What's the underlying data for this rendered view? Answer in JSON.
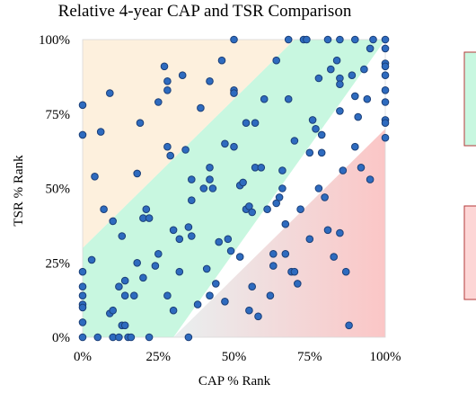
{
  "chart_data": {
    "type": "scatter",
    "title": "Relative 4-year CAP and TSR Comparison",
    "xlabel": "CAP % Rank",
    "ylabel": "TSR % Rank",
    "xlim": [
      0,
      100
    ],
    "ylim": [
      0,
      100
    ],
    "x_ticks": [
      "0%",
      "25%",
      "50%",
      "75%",
      "100%"
    ],
    "y_ticks": [
      "0%",
      "25%",
      "50%",
      "75%",
      "100%"
    ],
    "x_tick_values": [
      0,
      25,
      50,
      75,
      100
    ],
    "y_tick_values": [
      0,
      25,
      50,
      75,
      100
    ],
    "grid": false,
    "legend_placement": "right (partially cropped)",
    "regions": [
      {
        "label": "",
        "description": "upper-left band (TSR much higher than CAP)",
        "color": "#fdf0dd"
      },
      {
        "label": "",
        "description": "diagonal band",
        "color": "#c8f7e0"
      },
      {
        "label": "",
        "description": "lower-right band (TSR much lower than CAP)",
        "color": "#f7c9c9"
      }
    ],
    "series": [
      {
        "marker_color": "#2e6bbf",
        "marker_edge": "#1b3f78",
        "points": [
          [
            0,
            78
          ],
          [
            0,
            68
          ],
          [
            0,
            22
          ],
          [
            0,
            17
          ],
          [
            0,
            14
          ],
          [
            0,
            11
          ],
          [
            0,
            10
          ],
          [
            0,
            5
          ],
          [
            0,
            0
          ],
          [
            3,
            26
          ],
          [
            4,
            54
          ],
          [
            5,
            0
          ],
          [
            6,
            69
          ],
          [
            7,
            43
          ],
          [
            9,
            82
          ],
          [
            9,
            8
          ],
          [
            10,
            9
          ],
          [
            10,
            39
          ],
          [
            10,
            0
          ],
          [
            12,
            0
          ],
          [
            12,
            17
          ],
          [
            13,
            34
          ],
          [
            13,
            4
          ],
          [
            14,
            14
          ],
          [
            14,
            4
          ],
          [
            14,
            19
          ],
          [
            15,
            0
          ],
          [
            16,
            0
          ],
          [
            17,
            14
          ],
          [
            18,
            55
          ],
          [
            18,
            25
          ],
          [
            19,
            72
          ],
          [
            20,
            40
          ],
          [
            20,
            20
          ],
          [
            21,
            43
          ],
          [
            22,
            40
          ],
          [
            22,
            0
          ],
          [
            24,
            24
          ],
          [
            25,
            79
          ],
          [
            25,
            28
          ],
          [
            27,
            91
          ],
          [
            28,
            83
          ],
          [
            28,
            86
          ],
          [
            28,
            64
          ],
          [
            28,
            14
          ],
          [
            29,
            61
          ],
          [
            30,
            36
          ],
          [
            30,
            9
          ],
          [
            32,
            33
          ],
          [
            32,
            22
          ],
          [
            33,
            88
          ],
          [
            34,
            63
          ],
          [
            35,
            37
          ],
          [
            35,
            0
          ],
          [
            36,
            34
          ],
          [
            36,
            46
          ],
          [
            36,
            53
          ],
          [
            38,
            11
          ],
          [
            39,
            77
          ],
          [
            40,
            50
          ],
          [
            41,
            23
          ],
          [
            42,
            14
          ],
          [
            42,
            86
          ],
          [
            42,
            57
          ],
          [
            42,
            53
          ],
          [
            43,
            50
          ],
          [
            44,
            18
          ],
          [
            45,
            32
          ],
          [
            46,
            93
          ],
          [
            47,
            65
          ],
          [
            47,
            12
          ],
          [
            48,
            33
          ],
          [
            49,
            29
          ],
          [
            50,
            64
          ],
          [
            50,
            83
          ],
          [
            50,
            82
          ],
          [
            50,
            100
          ],
          [
            52,
            27
          ],
          [
            52,
            51
          ],
          [
            53,
            52
          ],
          [
            54,
            72
          ],
          [
            54,
            43
          ],
          [
            55,
            44
          ],
          [
            55,
            9
          ],
          [
            56,
            17
          ],
          [
            56,
            42
          ],
          [
            57,
            72
          ],
          [
            57,
            57
          ],
          [
            58,
            7
          ],
          [
            59,
            57
          ],
          [
            60,
            80
          ],
          [
            61,
            43
          ],
          [
            62,
            14
          ],
          [
            63,
            28
          ],
          [
            63,
            24
          ],
          [
            64,
            93
          ],
          [
            64,
            45
          ],
          [
            65,
            47
          ],
          [
            66,
            50
          ],
          [
            66,
            56
          ],
          [
            67,
            38
          ],
          [
            67,
            28
          ],
          [
            68,
            80
          ],
          [
            68,
            100
          ],
          [
            69,
            22
          ],
          [
            70,
            22
          ],
          [
            70,
            66
          ],
          [
            71,
            18
          ],
          [
            72,
            43
          ],
          [
            73,
            100
          ],
          [
            74,
            100
          ],
          [
            75,
            33
          ],
          [
            75,
            62
          ],
          [
            76,
            73
          ],
          [
            77,
            70
          ],
          [
            78,
            87
          ],
          [
            78,
            50
          ],
          [
            79,
            62
          ],
          [
            79,
            68
          ],
          [
            80,
            47
          ],
          [
            81,
            36
          ],
          [
            81,
            100
          ],
          [
            82,
            90
          ],
          [
            83,
            27
          ],
          [
            84,
            93
          ],
          [
            85,
            87
          ],
          [
            85,
            85
          ],
          [
            85,
            76
          ],
          [
            85,
            100
          ],
          [
            85,
            35
          ],
          [
            86,
            56
          ],
          [
            87,
            22
          ],
          [
            88,
            4
          ],
          [
            89,
            88
          ],
          [
            90,
            81
          ],
          [
            90,
            64
          ],
          [
            90,
            100
          ],
          [
            91,
            74
          ],
          [
            92,
            57
          ],
          [
            93,
            90
          ],
          [
            94,
            80
          ],
          [
            95,
            53
          ],
          [
            95,
            97
          ],
          [
            96,
            100
          ],
          [
            100,
            100
          ],
          [
            100,
            97
          ],
          [
            100,
            92
          ],
          [
            100,
            91
          ],
          [
            100,
            88
          ],
          [
            100,
            83
          ],
          [
            100,
            79
          ],
          [
            100,
            73
          ],
          [
            100,
            72
          ],
          [
            100,
            67
          ]
        ]
      }
    ]
  }
}
